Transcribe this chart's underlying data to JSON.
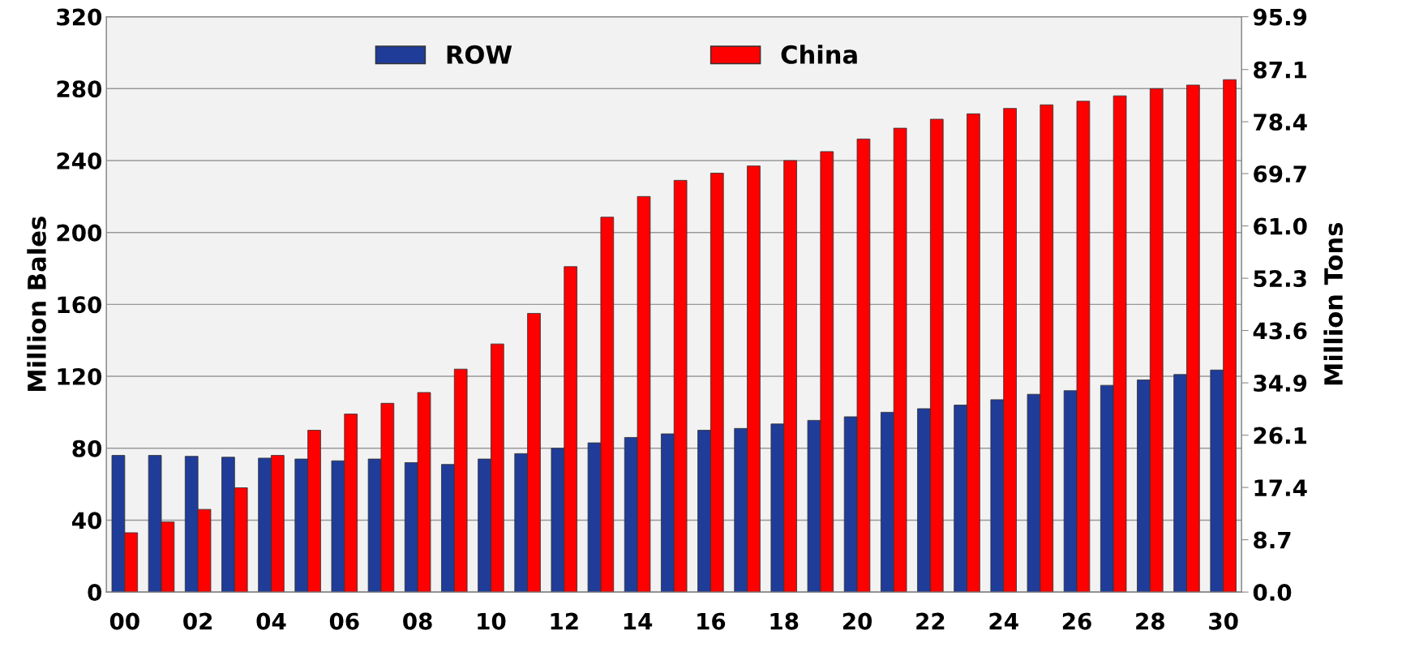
{
  "chart_data": {
    "type": "bar",
    "ylabel": "Million Bales",
    "y2label": "Million Tons",
    "categories": [
      "00",
      null,
      "02",
      null,
      "04",
      null,
      "06",
      null,
      "08",
      null,
      "10",
      null,
      "12",
      null,
      "14",
      null,
      "16",
      null,
      "18",
      null,
      "20",
      null,
      "22",
      null,
      "24",
      null,
      "26",
      null,
      "28",
      null,
      "30"
    ],
    "series": [
      {
        "name": "ROW",
        "color": "#1f3c99",
        "values": [
          76,
          76,
          75.5,
          75,
          74.5,
          74,
          73,
          74,
          72,
          71,
          74,
          77,
          80,
          83,
          86,
          88,
          90,
          91,
          93.5,
          95.5,
          97.5,
          100,
          102,
          104,
          107,
          110,
          112,
          115,
          118,
          121,
          123.5
        ]
      },
      {
        "name": "China",
        "color": "#ff0000",
        "values": [
          33,
          39,
          46,
          58,
          76,
          90,
          99,
          105,
          111,
          124,
          138,
          155,
          181,
          208.5,
          220,
          229,
          233,
          237,
          240,
          245,
          252,
          258,
          263,
          266,
          269,
          271,
          273,
          276,
          280,
          282,
          285
        ]
      }
    ],
    "ylim": [
      0,
      320
    ],
    "yticks": [
      0,
      40,
      80,
      120,
      160,
      200,
      240,
      280,
      320
    ],
    "y2lim": [
      0,
      95.9
    ],
    "y2ticks": [
      {
        "value": 0,
        "label": "0.0"
      },
      {
        "value": 8.72,
        "label": "8.7"
      },
      {
        "value": 17.44,
        "label": "17.4"
      },
      {
        "value": 26.15,
        "label": "26.1"
      },
      {
        "value": 34.87,
        "label": "34.9"
      },
      {
        "value": 43.6,
        "label": "43.6"
      },
      {
        "value": 52.31,
        "label": "52.3"
      },
      {
        "value": 61.03,
        "label": "61.0"
      },
      {
        "value": 69.75,
        "label": "69.7"
      },
      {
        "value": 78.4,
        "label": "78.4"
      },
      {
        "value": 87.1,
        "label": "87.1"
      },
      {
        "value": 95.9,
        "label": "95.9"
      }
    ],
    "grid": "y",
    "legend": "top"
  }
}
